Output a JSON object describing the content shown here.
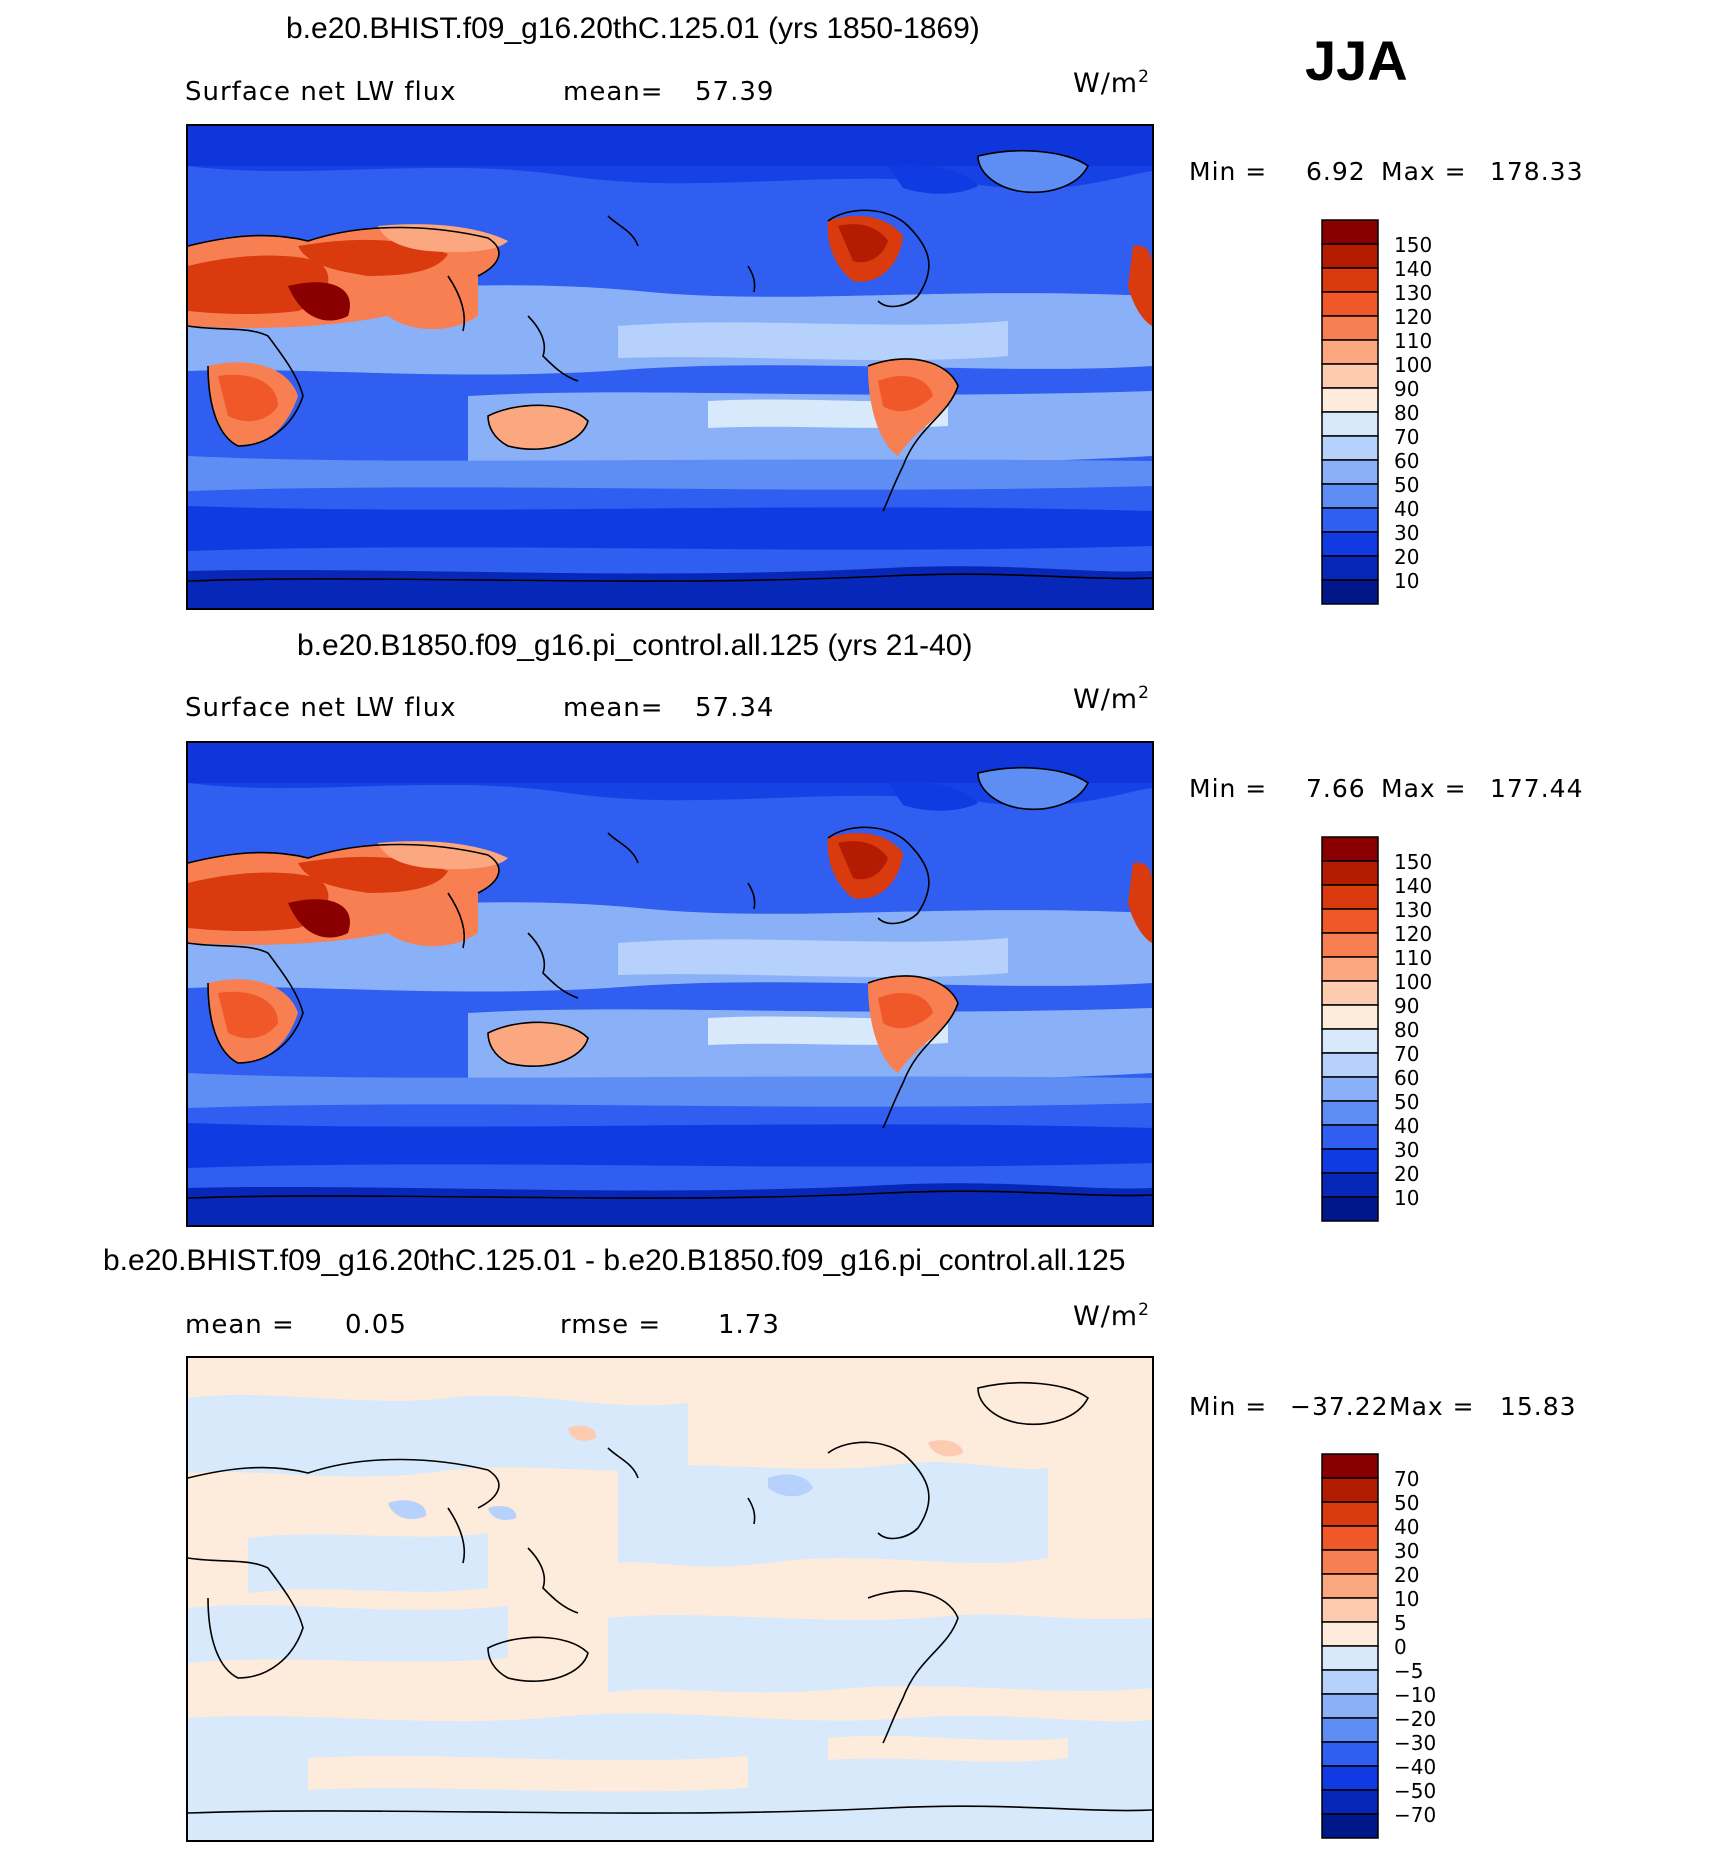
{
  "season": "JJA",
  "panels": [
    {
      "title": "b.e20.BHIST.f09_g16.20thC.125.01 (yrs 1850-1869)",
      "variable": "Surface net LW flux",
      "stat1_label": "mean=",
      "stat1_value": "57.39",
      "units": "W/m",
      "units_exp": "2",
      "min_label": "Min =",
      "min_value": "6.92",
      "max_label": "Max =",
      "max_value": "178.33"
    },
    {
      "title": "b.e20.B1850.f09_g16.pi_control.all.125 (yrs 21-40)",
      "variable": "Surface net LW flux",
      "stat1_label": "mean=",
      "stat1_value": "57.34",
      "units": "W/m",
      "units_exp": "2",
      "min_label": "Min =",
      "min_value": "7.66",
      "max_label": "Max =",
      "max_value": "177.44"
    },
    {
      "title": "b.e20.BHIST.f09_g16.20thC.125.01 - b.e20.B1850.f09_g16.pi_control.all.125",
      "stat1_label": "mean =",
      "stat1_value": "0.05",
      "stat2_label": "rmse =",
      "stat2_value": "1.73",
      "units": "W/m",
      "units_exp": "2",
      "min_label": "Min =",
      "min_value": "−37.22",
      "max_label": "Max =",
      "max_value": "15.83"
    }
  ],
  "chart_data": [
    {
      "type": "heatmap",
      "title": "b.e20.BHIST.f09_g16.20thC.125.01 (yrs 1850-1869)",
      "variable": "Surface net LW flux",
      "units": "W/m2",
      "mean": 57.39,
      "min": 6.92,
      "max": 178.33,
      "colorbar": {
        "labels": [
          "150",
          "140",
          "130",
          "120",
          "110",
          "100",
          "90",
          "80",
          "70",
          "60",
          "50",
          "40",
          "30",
          "20",
          "10"
        ],
        "colors": [
          "#8a0000",
          "#b31c00",
          "#d93b0f",
          "#f0582a",
          "#f77f52",
          "#fba780",
          "#fccbb0",
          "#fdebdc",
          "#d7e9fb",
          "#b6d1fb",
          "#8ab1f8",
          "#5e8ef3",
          "#2f5ef0",
          "#103be2",
          "#0627b8",
          "#00178a"
        ]
      }
    },
    {
      "type": "heatmap",
      "title": "b.e20.B1850.f09_g16.pi_control.all.125 (yrs 21-40)",
      "variable": "Surface net LW flux",
      "units": "W/m2",
      "mean": 57.34,
      "min": 7.66,
      "max": 177.44,
      "colorbar": {
        "labels": [
          "150",
          "140",
          "130",
          "120",
          "110",
          "100",
          "90",
          "80",
          "70",
          "60",
          "50",
          "40",
          "30",
          "20",
          "10"
        ],
        "colors": [
          "#8a0000",
          "#b31c00",
          "#d93b0f",
          "#f0582a",
          "#f77f52",
          "#fba780",
          "#fccbb0",
          "#fdebdc",
          "#d7e9fb",
          "#b6d1fb",
          "#8ab1f8",
          "#5e8ef3",
          "#2f5ef0",
          "#103be2",
          "#0627b8",
          "#00178a"
        ]
      }
    },
    {
      "type": "heatmap",
      "title": "b.e20.BHIST.f09_g16.20thC.125.01 - b.e20.B1850.f09_g16.pi_control.all.125",
      "units": "W/m2",
      "mean": 0.05,
      "rmse": 1.73,
      "min": -37.22,
      "max": 15.83,
      "colorbar": {
        "labels": [
          "70",
          "50",
          "40",
          "30",
          "20",
          "10",
          "5",
          "0",
          "−5",
          "−10",
          "−20",
          "−30",
          "−40",
          "−50",
          "−70"
        ],
        "colors": [
          "#8a0000",
          "#b31c00",
          "#d93b0f",
          "#f0582a",
          "#f77f52",
          "#fba780",
          "#fccbb0",
          "#fdebdc",
          "#d7e9fb",
          "#b6d1fb",
          "#8ab1f8",
          "#5e8ef3",
          "#2f5ef0",
          "#103be2",
          "#0627b8",
          "#00178a"
        ]
      }
    }
  ]
}
